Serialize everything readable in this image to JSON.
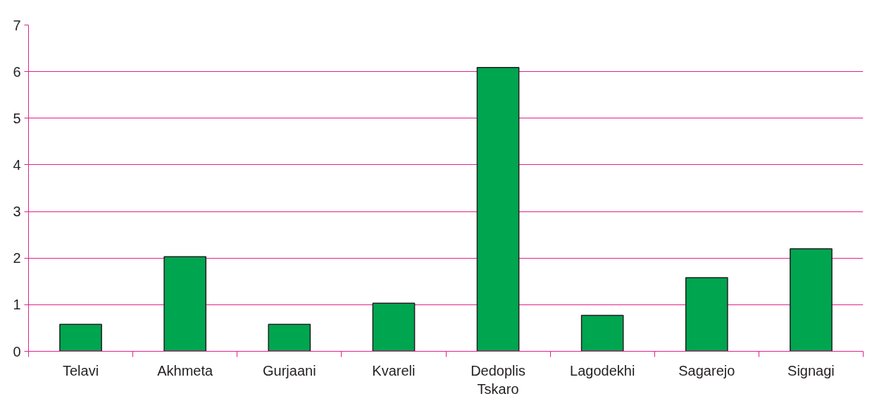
{
  "chart_data": {
    "type": "bar",
    "categories": [
      "Telavi",
      "Akhmeta",
      "Gurjaani",
      "Kvareli",
      "Dedoplis Tskaro",
      "Lagodekhi",
      "Sagarejo",
      "Signagi"
    ],
    "values": [
      0.58,
      2.03,
      0.58,
      1.03,
      6.09,
      0.77,
      1.58,
      2.2
    ],
    "color": "#00a54f",
    "ylim": [
      0,
      7
    ],
    "yticks": [
      0,
      1,
      2,
      3,
      4,
      5,
      6,
      7
    ],
    "grid": "y"
  }
}
